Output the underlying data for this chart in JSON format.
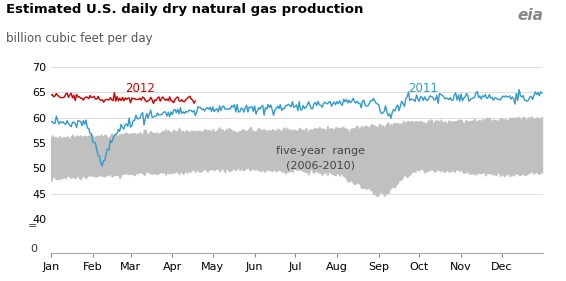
{
  "title": "Estimated U.S. daily dry natural gas production",
  "subtitle": "billion cubic feet per day",
  "title_fontsize": 9.5,
  "subtitle_fontsize": 8.5,
  "ylim_main": [
    40,
    71
  ],
  "yticks_main": [
    40,
    45,
    50,
    55,
    60,
    65,
    70
  ],
  "xlabel_months": [
    "Jan",
    "Feb",
    "Mar",
    "Apr",
    "May",
    "Jun",
    "Jul",
    "Aug",
    "Sep",
    "Oct",
    "Nov",
    "Dec"
  ],
  "month_starts": [
    0,
    31,
    59,
    90,
    120,
    151,
    181,
    212,
    243,
    273,
    304,
    334
  ],
  "line2012_color": "#cc0000",
  "line2011_color": "#3399cc",
  "fill_color": "#c0c0c0",
  "background_color": "#ffffff",
  "label_2012": "2012",
  "label_2011": "2011",
  "range_label": "five-year  range\n(2006-2010)",
  "grid_color": "#d8d8d8",
  "tick_color": "#888888",
  "text_color": "#333333",
  "eia_color": "#888888"
}
